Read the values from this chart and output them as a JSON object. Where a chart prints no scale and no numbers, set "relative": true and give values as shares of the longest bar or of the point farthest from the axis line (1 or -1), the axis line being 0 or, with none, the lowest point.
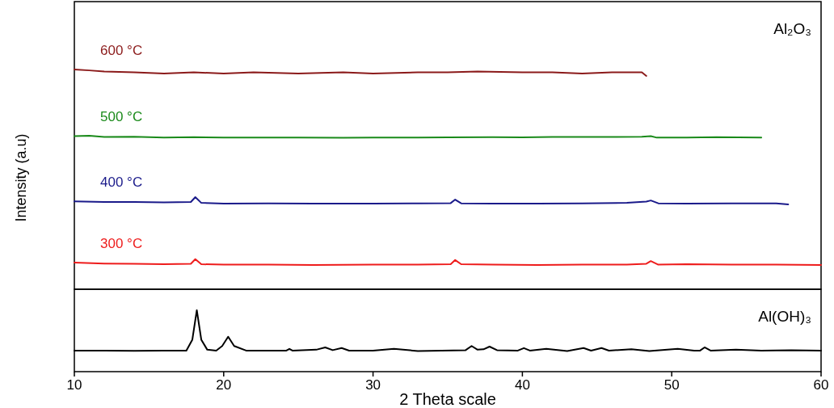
{
  "chart_data": [
    {
      "type": "line",
      "relative": true,
      "ylabel": "Intensity (a.u)",
      "annotations": [
        "Al₂O₃"
      ],
      "xlim": [
        10,
        60
      ],
      "xticks": [
        10,
        20,
        30,
        40,
        50,
        60
      ],
      "tick_labels": false,
      "series": [
        {
          "name": "600 °C",
          "color": "#8b1a1a",
          "x": [
            10,
            11,
            12,
            14,
            16,
            18,
            20,
            22,
            25,
            28,
            30,
            33,
            35,
            37,
            40,
            42,
            44,
            46,
            47,
            48,
            48.3
          ],
          "values": [
            1.0,
            0.996,
            0.991,
            0.987,
            0.982,
            0.987,
            0.982,
            0.987,
            0.982,
            0.987,
            0.982,
            0.987,
            0.987,
            0.991,
            0.987,
            0.987,
            0.982,
            0.987,
            0.987,
            0.987,
            0.971
          ]
        },
        {
          "name": "500 °C",
          "color": "#1a8a1a",
          "x": [
            10,
            11,
            12,
            14,
            16,
            18,
            20,
            22,
            25,
            28,
            30,
            33,
            35,
            38,
            40,
            42,
            45,
            48,
            48.6,
            49,
            51,
            53,
            56
          ],
          "values": [
            0.697,
            0.699,
            0.693,
            0.694,
            0.69,
            0.692,
            0.69,
            0.69,
            0.69,
            0.689,
            0.69,
            0.69,
            0.691,
            0.692,
            0.691,
            0.693,
            0.693,
            0.694,
            0.697,
            0.69,
            0.69,
            0.692,
            0.69
          ]
        },
        {
          "name": "400 °C",
          "color": "#1a1a8a",
          "x": [
            10,
            12,
            14,
            16,
            17.8,
            18.1,
            18.5,
            20,
            23,
            26,
            30,
            33,
            35.2,
            35.5,
            35.9,
            38,
            41,
            44,
            47,
            48.3,
            48.6,
            49.1,
            51,
            54,
            57,
            57.8
          ],
          "values": [
            0.4,
            0.397,
            0.397,
            0.395,
            0.397,
            0.419,
            0.393,
            0.39,
            0.391,
            0.39,
            0.39,
            0.391,
            0.392,
            0.408,
            0.391,
            0.39,
            0.39,
            0.391,
            0.393,
            0.399,
            0.404,
            0.391,
            0.39,
            0.391,
            0.391,
            0.386
          ]
        },
        {
          "name": "300 °C",
          "color": "#ee1c1c",
          "x": [
            10,
            12,
            14,
            16,
            17.8,
            18.1,
            18.5,
            20,
            23,
            26,
            30,
            33,
            35.2,
            35.5,
            35.9,
            38,
            41,
            44,
            47,
            48.3,
            48.6,
            49.1,
            51,
            54,
            57,
            60
          ],
          "values": [
            0.121,
            0.117,
            0.116,
            0.114,
            0.116,
            0.137,
            0.114,
            0.112,
            0.112,
            0.11,
            0.112,
            0.112,
            0.114,
            0.133,
            0.114,
            0.112,
            0.11,
            0.112,
            0.112,
            0.116,
            0.128,
            0.112,
            0.114,
            0.112,
            0.112,
            0.11
          ]
        }
      ]
    },
    {
      "type": "line",
      "relative": true,
      "xlabel": "2 Theta scale",
      "annotations": [
        "Al(OH)₃"
      ],
      "xlim": [
        10,
        60
      ],
      "xticks": [
        10,
        20,
        30,
        40,
        50,
        60
      ],
      "tick_labels": "x",
      "series": [
        {
          "color": "#000000",
          "x": [
            10,
            12,
            14,
            16,
            17.5,
            17.9,
            18.2,
            18.5,
            18.9,
            19.5,
            19.9,
            20.3,
            20.7,
            21.5,
            23,
            24.2,
            24.4,
            24.6,
            26.2,
            26.8,
            27.3,
            27.9,
            28.4,
            30,
            31.4,
            33,
            36.2,
            36.6,
            37,
            37.4,
            37.8,
            38.3,
            39.7,
            40.1,
            40.5,
            41.6,
            43,
            44.1,
            44.6,
            45.3,
            45.8,
            47.3,
            48.5,
            50.4,
            51.5,
            51.9,
            52.2,
            52.6,
            54.3,
            56,
            58,
            60
          ],
          "values": [
            0.343,
            0.343,
            0.34,
            0.343,
            0.343,
            0.521,
            1.0,
            0.521,
            0.357,
            0.343,
            0.418,
            0.569,
            0.418,
            0.343,
            0.343,
            0.343,
            0.371,
            0.343,
            0.357,
            0.395,
            0.35,
            0.384,
            0.343,
            0.343,
            0.371,
            0.336,
            0.35,
            0.418,
            0.357,
            0.364,
            0.408,
            0.35,
            0.343,
            0.384,
            0.343,
            0.371,
            0.336,
            0.384,
            0.343,
            0.384,
            0.343,
            0.364,
            0.336,
            0.371,
            0.343,
            0.343,
            0.395,
            0.343,
            0.357,
            0.343,
            0.35,
            0.343
          ]
        }
      ]
    }
  ]
}
